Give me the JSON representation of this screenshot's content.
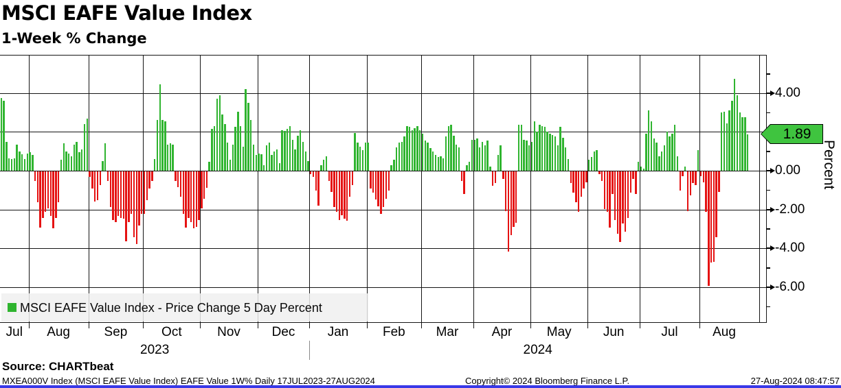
{
  "header": {
    "title": "MSCI EAFE Value Index",
    "subtitle": "1-Week % Change"
  },
  "chart_data": {
    "type": "bar",
    "title": "MSCI EAFE Value Index",
    "subtitle": "1-Week % Change",
    "ylabel": "Percent",
    "ylim": [
      -7.8,
      5.9
    ],
    "grid": true,
    "y_major_ticks": [
      4,
      2,
      0,
      -2,
      -4,
      -6
    ],
    "y_major_tick_labels": {
      "4": "4.00",
      "0": "0.00",
      "-2": "-2.00",
      "-4": "-4.00",
      "-6": "-6.00"
    },
    "y_minor_ticks": [
      5,
      3,
      1,
      -1,
      -3,
      -5,
      -7
    ],
    "last_value": 1.89,
    "last_value_label": "1.89",
    "positive_color": "#2fb42f",
    "negative_color": "#e51212",
    "series_name": "MSCI EAFE Value Index - Price Change 5 Day Percent",
    "months": [
      {
        "label": "Jul",
        "year": 2023,
        "values": [
          3.75,
          3.6,
          1.5,
          0.65,
          0.6,
          0.65,
          1.35,
          1.0,
          0.85,
          0.6,
          0.9
        ]
      },
      {
        "label": "Aug",
        "year": 2023,
        "values": [
          0.95,
          0.8,
          -0.5,
          -1.6,
          -2.9,
          -2.4,
          -2.1,
          -1.9,
          -2.3,
          -2.95,
          -2.4,
          -1.6,
          0.55,
          1.4,
          1.0,
          0.9,
          0.75,
          1.35,
          1.5,
          0.95,
          1.1,
          2.4,
          2.7
        ]
      },
      {
        "label": "Sep",
        "year": 2023,
        "values": [
          -0.3,
          -0.9,
          -1.55,
          -1.5,
          -0.7,
          0.5,
          1.4,
          -0.5,
          -1.85,
          -2.5,
          -2.6,
          -2.3,
          -2.4,
          -2.45,
          -3.6,
          -2.6,
          -2.2,
          -3.4,
          -3.75,
          -2.8,
          -2.2
        ]
      },
      {
        "label": "Oct",
        "year": 2023,
        "values": [
          -2.2,
          -1.5,
          -0.9,
          -0.5,
          0.6,
          2.6,
          4.45,
          2.6,
          2.55,
          1.35,
          1.4,
          1.35,
          -0.5,
          -0.8,
          -1.3,
          -2.2,
          -2.9,
          -2.4,
          -2.6,
          -2.95,
          -2.85,
          -2.5
        ]
      },
      {
        "label": "Nov",
        "year": 2023,
        "values": [
          -1.9,
          -1.4,
          -0.85,
          0.45,
          2.15,
          2.3,
          3.7,
          3.9,
          2.9,
          2.4,
          1.45,
          0.55,
          1.35,
          2.25,
          3.05,
          2.3,
          1.25,
          4.2,
          3.5,
          2.6,
          1.35,
          0.8
        ]
      },
      {
        "label": "Dec",
        "year": 2023,
        "values": [
          0.9,
          0.85,
          0.3,
          1.3,
          1.45,
          0.8,
          1.0,
          1.1,
          0.4,
          2.1,
          2.05,
          2.15,
          2.3,
          1.6,
          1.1,
          1.8,
          2.1,
          1.5,
          1.0,
          0.5
        ]
      },
      {
        "label": "Jan",
        "year": 2024,
        "values": [
          -0.15,
          -0.3,
          -1.0,
          -1.75,
          0.3,
          0.55,
          0.75,
          -0.5,
          -1.05,
          -1.85,
          -2.1,
          -2.5,
          -2.25,
          -2.45,
          -2.55,
          -1.3,
          -0.7,
          1.95,
          1.45,
          1.25,
          1.05,
          1.45
        ]
      },
      {
        "label": "Feb",
        "year": 2024,
        "values": [
          1.45,
          -0.9,
          -1.1,
          -1.45,
          -1.8,
          -2.2,
          -1.85,
          -1.4,
          -1.0,
          0.3,
          0.55,
          1.2,
          1.45,
          1.5,
          1.75,
          2.3,
          2.25,
          2.1,
          2.2,
          2.3,
          2.1
        ]
      },
      {
        "label": "Mar",
        "year": 2024,
        "values": [
          1.9,
          1.55,
          1.45,
          1.15,
          1.0,
          0.8,
          0.7,
          0.75,
          0.65,
          1.75,
          2.3,
          2.35,
          1.8,
          1.35,
          1.2,
          -0.5,
          -1.15,
          0.3,
          0.45,
          1.6
        ]
      },
      {
        "label": "Apr",
        "year": 2024,
        "values": [
          1.6,
          1.65,
          1.2,
          1.5,
          1.3,
          1.55,
          0.2,
          -0.75,
          -0.6,
          0.8,
          1.3,
          -0.4,
          -2.05,
          -4.15,
          -3.3,
          -2.85,
          -2.65,
          2.35,
          2.35,
          1.6,
          1.55,
          1.3
        ]
      },
      {
        "label": "May",
        "year": 2024,
        "values": [
          1.5,
          2.55,
          2.0,
          2.35,
          2.3,
          2.25,
          2.0,
          1.9,
          1.85,
          1.75,
          1.3,
          2.25,
          1.7,
          1.2,
          0.6,
          -0.6,
          -1.1,
          -1.6,
          -2.1,
          -1.3,
          -0.9,
          -0.55
        ]
      },
      {
        "label": "Jun",
        "year": 2024,
        "values": [
          0.55,
          0.7,
          1.0,
          1.05,
          -0.15,
          -0.5,
          -1.95,
          -2.1,
          -2.9,
          -1.15,
          -2.5,
          -3.2,
          -3.65,
          -2.7,
          -3.1,
          -2.4,
          -1.1,
          -0.4,
          -1.15,
          0.45
        ]
      },
      {
        "label": "Jul",
        "year": 2024,
        "values": [
          0.2,
          0.1,
          1.9,
          3.1,
          2.55,
          1.65,
          1.45,
          0.75,
          1.0,
          1.3,
          2.0,
          1.75,
          1.9,
          2.35,
          0.75,
          -1.0,
          -0.25,
          0.2,
          -2.05,
          -1.25,
          -0.6,
          -0.7,
          1.05
        ]
      },
      {
        "label": "Aug",
        "year": 2024,
        "values": [
          -0.25,
          -0.55,
          -2.1,
          -5.9,
          -4.7,
          -4.65,
          -3.4,
          -1.05,
          3.0,
          3.05,
          2.45,
          3.1,
          3.6,
          4.75,
          3.9,
          3.0,
          2.75,
          2.75,
          1.89
        ]
      }
    ],
    "x_year_labels": [
      "2023",
      "2024"
    ]
  },
  "legend": {
    "label": "MSCI EAFE Value Index - Price Change 5 Day Percent",
    "swatch_color": "#2fb42f"
  },
  "source": {
    "label": "Source: CHARTbeat"
  },
  "footer": {
    "left": "MXEA000V Index (MSCI EAFE Value Index) EAFE Value 1W%  Daily 17JUL2023-27AUG2024",
    "center": "Copyright© 2024 Bloomberg Finance L.P.",
    "right": "27-Aug-2024 08:47:57"
  }
}
